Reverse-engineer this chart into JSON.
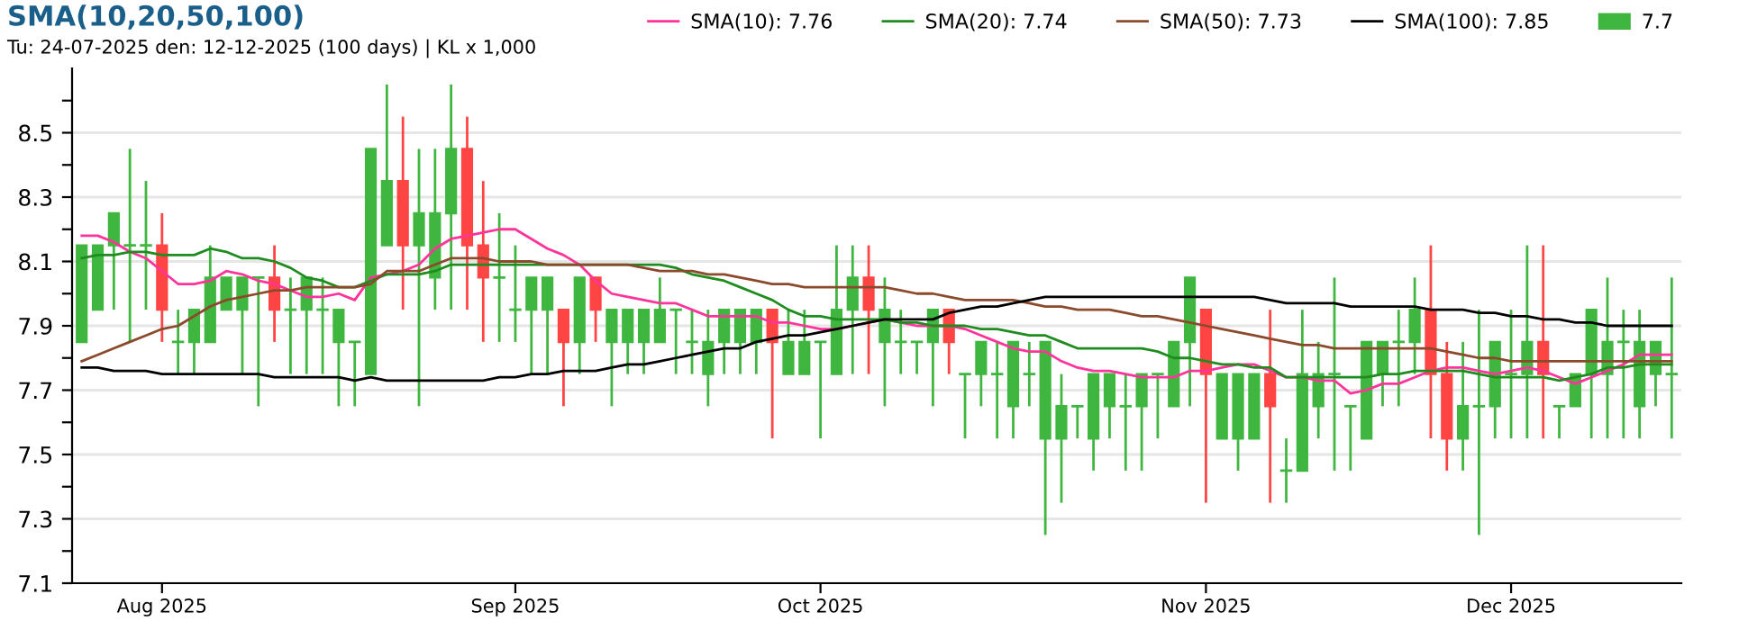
{
  "chart_data": {
    "type": "candlestick",
    "title": "SMA(10,20,50,100)",
    "annotations": [
      "Tu: 24-07-2025 den: 12-12-2025 (100 days) | KL x 1,000"
    ],
    "categories": [
      null,
      null,
      null,
      null,
      null,
      "Aug 2025",
      null,
      null,
      null,
      null,
      null,
      null,
      null,
      null,
      null,
      null,
      null,
      null,
      null,
      null,
      null,
      null,
      null,
      null,
      null,
      null,
      null,
      "Sep 2025",
      null,
      null,
      null,
      null,
      null,
      null,
      null,
      null,
      null,
      null,
      null,
      null,
      null,
      null,
      null,
      null,
      null,
      null,
      "Oct 2025",
      null,
      null,
      null,
      null,
      null,
      null,
      null,
      null,
      null,
      null,
      null,
      null,
      null,
      null,
      null,
      null,
      null,
      null,
      null,
      null,
      null,
      null,
      null,
      "Nov 2025",
      null,
      null,
      null,
      null,
      null,
      null,
      null,
      null,
      null,
      null,
      null,
      null,
      null,
      null,
      null,
      null,
      null,
      null,
      "Dec 2025",
      null,
      null,
      null,
      null,
      null,
      null,
      null,
      null,
      null,
      null
    ],
    "ylim": [
      7.1,
      8.7
    ],
    "yticks": [
      7.1,
      {
        "value": 7.2,
        "label": null
      },
      7.3,
      {
        "value": 7.4,
        "label": null
      },
      7.5,
      {
        "value": 7.6,
        "label": null
      },
      7.7,
      {
        "value": 7.8,
        "label": null
      },
      7.9,
      {
        "value": 8.0,
        "label": null
      },
      8.1,
      {
        "value": 8.2,
        "label": null
      },
      8.3,
      {
        "value": 8.4,
        "label": null
      },
      8.5,
      {
        "value": 8.6,
        "label": null
      }
    ],
    "grid": "y",
    "legend": "top right",
    "series": [
      {
        "type": "line",
        "name": "SMA(10): 7.76",
        "color": "#ff3399",
        "values": [
          8.18,
          8.18,
          8.16,
          8.13,
          8.11,
          8.07,
          8.03,
          8.03,
          8.04,
          8.07,
          8.06,
          8.04,
          8.03,
          8.01,
          7.99,
          7.99,
          8.0,
          7.98,
          8.05,
          8.06,
          8.07,
          8.09,
          8.14,
          8.17,
          8.18,
          8.19,
          8.2,
          8.2,
          8.17,
          8.14,
          8.12,
          8.09,
          8.04,
          8.0,
          7.99,
          7.98,
          7.97,
          7.97,
          7.95,
          7.93,
          7.93,
          7.93,
          7.93,
          7.91,
          7.91,
          7.9,
          7.89,
          7.89,
          7.9,
          7.91,
          7.92,
          7.91,
          7.9,
          7.9,
          7.9,
          7.89,
          7.87,
          7.85,
          7.83,
          7.82,
          7.82,
          7.79,
          7.77,
          7.76,
          7.76,
          7.75,
          7.74,
          7.74,
          7.74,
          7.76,
          7.76,
          7.77,
          7.78,
          7.78,
          7.76,
          7.74,
          7.74,
          7.73,
          7.73,
          7.69,
          7.7,
          7.72,
          7.72,
          7.74,
          7.76,
          7.77,
          7.77,
          7.76,
          7.75,
          7.76,
          7.77,
          7.76,
          7.74,
          7.72,
          7.74,
          7.76,
          7.78,
          7.81,
          7.81,
          7.81
        ]
      },
      {
        "type": "line",
        "name": "SMA(20): 7.74",
        "color": "#1e8c1e",
        "values": [
          8.11,
          8.12,
          8.12,
          8.13,
          8.13,
          8.12,
          8.12,
          8.12,
          8.14,
          8.13,
          8.11,
          8.11,
          8.1,
          8.08,
          8.05,
          8.04,
          8.02,
          8.02,
          8.04,
          8.06,
          8.06,
          8.06,
          8.07,
          8.09,
          8.09,
          8.09,
          8.09,
          8.09,
          8.09,
          8.09,
          8.09,
          8.09,
          8.09,
          8.09,
          8.09,
          8.09,
          8.09,
          8.08,
          8.06,
          8.05,
          8.04,
          8.02,
          8.0,
          7.98,
          7.95,
          7.93,
          7.93,
          7.92,
          7.92,
          7.92,
          7.92,
          7.91,
          7.91,
          7.9,
          7.9,
          7.9,
          7.89,
          7.89,
          7.88,
          7.87,
          7.87,
          7.85,
          7.83,
          7.83,
          7.83,
          7.83,
          7.83,
          7.82,
          7.8,
          7.8,
          7.79,
          7.78,
          7.78,
          7.77,
          7.77,
          7.74,
          7.74,
          7.74,
          7.74,
          7.74,
          7.74,
          7.75,
          7.75,
          7.76,
          7.76,
          7.76,
          7.76,
          7.75,
          7.74,
          7.74,
          7.74,
          7.74,
          7.73,
          7.74,
          7.75,
          7.77,
          7.77,
          7.78,
          7.78,
          7.78
        ]
      },
      {
        "type": "line",
        "name": "SMA(50): 7.73",
        "color": "#8b4a2b",
        "values": [
          7.79,
          7.81,
          7.83,
          7.85,
          7.87,
          7.89,
          7.9,
          7.93,
          7.96,
          7.98,
          7.99,
          8.0,
          8.01,
          8.01,
          8.02,
          8.02,
          8.02,
          8.02,
          8.03,
          8.07,
          8.07,
          8.07,
          8.09,
          8.11,
          8.11,
          8.11,
          8.1,
          8.1,
          8.1,
          8.09,
          8.09,
          8.09,
          8.09,
          8.09,
          8.09,
          8.08,
          8.07,
          8.07,
          8.07,
          8.06,
          8.06,
          8.05,
          8.04,
          8.03,
          8.03,
          8.02,
          8.02,
          8.02,
          8.02,
          8.02,
          8.02,
          8.01,
          8.0,
          8.0,
          7.99,
          7.98,
          7.98,
          7.98,
          7.98,
          7.97,
          7.96,
          7.96,
          7.95,
          7.95,
          7.95,
          7.94,
          7.93,
          7.93,
          7.92,
          7.91,
          7.9,
          7.89,
          7.88,
          7.87,
          7.86,
          7.85,
          7.84,
          7.84,
          7.83,
          7.83,
          7.83,
          7.83,
          7.83,
          7.83,
          7.83,
          7.82,
          7.81,
          7.8,
          7.8,
          7.79,
          7.79,
          7.79,
          7.79,
          7.79,
          7.79,
          7.79,
          7.79,
          7.79,
          7.79,
          7.79
        ]
      },
      {
        "type": "line",
        "name": "SMA(100): 7.85",
        "color": "#000000",
        "values": [
          7.77,
          7.77,
          7.76,
          7.76,
          7.76,
          7.75,
          7.75,
          7.75,
          7.75,
          7.75,
          7.75,
          7.75,
          7.74,
          7.74,
          7.74,
          7.74,
          7.74,
          7.73,
          7.74,
          7.73,
          7.73,
          7.73,
          7.73,
          7.73,
          7.73,
          7.73,
          7.74,
          7.74,
          7.75,
          7.75,
          7.76,
          7.76,
          7.76,
          7.77,
          7.78,
          7.78,
          7.79,
          7.8,
          7.81,
          7.82,
          7.83,
          7.83,
          7.85,
          7.86,
          7.87,
          7.87,
          7.88,
          7.89,
          7.9,
          7.91,
          7.92,
          7.92,
          7.92,
          7.92,
          7.94,
          7.95,
          7.96,
          7.96,
          7.97,
          7.98,
          7.99,
          7.99,
          7.99,
          7.99,
          7.99,
          7.99,
          7.99,
          7.99,
          7.99,
          7.99,
          7.99,
          7.99,
          7.99,
          7.99,
          7.98,
          7.97,
          7.97,
          7.97,
          7.97,
          7.96,
          7.96,
          7.96,
          7.96,
          7.96,
          7.95,
          7.95,
          7.95,
          7.94,
          7.94,
          7.93,
          7.93,
          7.92,
          7.92,
          7.91,
          7.91,
          7.9,
          7.9,
          7.9,
          7.9,
          7.9
        ]
      },
      {
        "name": "7.7",
        "color": "#3fb63f",
        "colors": [
          "#3fb63f",
          "#3fb63f",
          "#3fb63f",
          "#3fb63f",
          "#3fb63f",
          "#ff4444",
          "#3fb63f",
          "#3fb63f",
          "#3fb63f",
          "#3fb63f",
          "#3fb63f",
          "#3fb63f",
          "#ff4444",
          "#3fb63f",
          "#3fb63f",
          "#3fb63f",
          "#3fb63f",
          "#3fb63f",
          "#3fb63f",
          "#3fb63f",
          "#ff4444",
          "#3fb63f",
          "#3fb63f",
          "#3fb63f",
          "#ff4444",
          "#ff4444",
          "#3fb63f",
          "#3fb63f",
          "#3fb63f",
          "#3fb63f",
          "#ff4444",
          "#3fb63f",
          "#ff4444",
          "#3fb63f",
          "#3fb63f",
          "#3fb63f",
          "#3fb63f",
          "#3fb63f",
          "#3fb63f",
          "#3fb63f",
          "#3fb63f",
          "#3fb63f",
          "#3fb63f",
          "#ff4444",
          "#3fb63f",
          "#3fb63f",
          "#3fb63f",
          "#3fb63f",
          "#3fb63f",
          "#ff4444",
          "#3fb63f",
          "#3fb63f",
          "#3fb63f",
          "#3fb63f",
          "#ff4444",
          "#3fb63f",
          "#3fb63f",
          "#3fb63f",
          "#3fb63f",
          "#3fb63f",
          "#3fb63f",
          "#3fb63f",
          "#3fb63f",
          "#3fb63f",
          "#3fb63f",
          "#3fb63f",
          "#3fb63f",
          "#3fb63f",
          "#3fb63f",
          "#3fb63f",
          "#ff4444",
          "#3fb63f",
          "#3fb63f",
          "#3fb63f",
          "#ff4444",
          "#3fb63f",
          "#3fb63f",
          "#3fb63f",
          "#3fb63f",
          "#3fb63f",
          "#3fb63f",
          "#3fb63f",
          "#3fb63f",
          "#3fb63f",
          "#ff4444",
          "#ff4444",
          "#3fb63f",
          "#3fb63f",
          "#3fb63f",
          "#3fb63f",
          "#3fb63f",
          "#ff4444",
          "#3fb63f",
          "#3fb63f",
          "#3fb63f",
          "#3fb63f",
          "#3fb63f",
          "#3fb63f",
          "#3fb63f",
          "#3fb63f"
        ],
        "ohlc": [
          [
            7.85,
            8.15,
            7.85,
            8.15
          ],
          [
            7.95,
            8.15,
            7.95,
            8.15
          ],
          [
            8.15,
            8.25,
            7.95,
            8.25
          ],
          [
            8.15,
            8.45,
            7.85,
            8.15
          ],
          [
            8.15,
            8.35,
            7.95,
            8.15
          ],
          [
            8.15,
            8.25,
            7.85,
            7.95
          ],
          [
            7.85,
            7.95,
            7.75,
            7.85
          ],
          [
            7.85,
            7.95,
            7.75,
            7.95
          ],
          [
            7.85,
            8.15,
            7.85,
            8.05
          ],
          [
            7.95,
            8.05,
            7.95,
            8.05
          ],
          [
            7.95,
            8.05,
            7.75,
            8.05
          ],
          [
            8.05,
            8.05,
            7.65,
            8.05
          ],
          [
            8.05,
            8.15,
            7.85,
            7.95
          ],
          [
            7.95,
            8.05,
            7.75,
            7.95
          ],
          [
            7.95,
            8.05,
            7.75,
            8.05
          ],
          [
            7.95,
            8.05,
            7.75,
            7.95
          ],
          [
            7.85,
            7.95,
            7.65,
            7.95
          ],
          [
            7.85,
            7.85,
            7.65,
            7.85
          ],
          [
            7.75,
            8.45,
            7.75,
            8.45
          ],
          [
            8.15,
            8.65,
            8.15,
            8.35
          ],
          [
            8.35,
            8.55,
            7.95,
            8.15
          ],
          [
            8.15,
            8.45,
            7.65,
            8.25
          ],
          [
            8.05,
            8.45,
            7.95,
            8.25
          ],
          [
            8.25,
            8.65,
            7.95,
            8.45
          ],
          [
            8.45,
            8.55,
            7.95,
            8.15
          ],
          [
            8.15,
            8.35,
            7.85,
            8.05
          ],
          [
            8.05,
            8.25,
            7.85,
            8.05
          ],
          [
            7.95,
            8.15,
            7.85,
            7.95
          ],
          [
            7.95,
            8.05,
            7.75,
            8.05
          ],
          [
            7.95,
            8.05,
            7.75,
            8.05
          ],
          [
            7.95,
            7.95,
            7.65,
            7.85
          ],
          [
            7.85,
            8.05,
            7.75,
            8.05
          ],
          [
            8.05,
            8.05,
            7.85,
            7.95
          ],
          [
            7.85,
            7.95,
            7.65,
            7.95
          ],
          [
            7.85,
            7.95,
            7.75,
            7.95
          ],
          [
            7.85,
            7.95,
            7.75,
            7.95
          ],
          [
            7.85,
            8.05,
            7.85,
            7.95
          ],
          [
            7.95,
            7.95,
            7.75,
            7.95
          ],
          [
            7.85,
            7.95,
            7.75,
            7.85
          ],
          [
            7.75,
            7.95,
            7.65,
            7.85
          ],
          [
            7.85,
            7.95,
            7.75,
            7.95
          ],
          [
            7.85,
            7.95,
            7.75,
            7.95
          ],
          [
            7.85,
            7.95,
            7.75,
            7.95
          ],
          [
            7.95,
            7.95,
            7.55,
            7.85
          ],
          [
            7.75,
            7.95,
            7.75,
            7.85
          ],
          [
            7.75,
            7.95,
            7.75,
            7.85
          ],
          [
            7.85,
            7.85,
            7.55,
            7.85
          ],
          [
            7.75,
            8.15,
            7.75,
            7.95
          ],
          [
            7.95,
            8.15,
            7.75,
            8.05
          ],
          [
            8.05,
            8.15,
            7.75,
            7.95
          ],
          [
            7.85,
            8.05,
            7.65,
            7.95
          ],
          [
            7.85,
            7.95,
            7.75,
            7.85
          ],
          [
            7.85,
            7.85,
            7.75,
            7.85
          ],
          [
            7.85,
            7.95,
            7.65,
            7.95
          ],
          [
            7.95,
            7.95,
            7.75,
            7.85
          ],
          [
            7.75,
            7.75,
            7.55,
            7.75
          ],
          [
            7.75,
            7.85,
            7.65,
            7.85
          ],
          [
            7.75,
            7.85,
            7.55,
            7.75
          ],
          [
            7.65,
            7.85,
            7.55,
            7.85
          ],
          [
            7.75,
            7.85,
            7.65,
            7.75
          ],
          [
            7.55,
            7.85,
            7.25,
            7.85
          ],
          [
            7.55,
            7.75,
            7.35,
            7.65
          ],
          [
            7.65,
            7.65,
            7.55,
            7.65
          ],
          [
            7.55,
            7.75,
            7.45,
            7.75
          ],
          [
            7.65,
            7.75,
            7.55,
            7.75
          ],
          [
            7.65,
            7.75,
            7.45,
            7.65
          ],
          [
            7.65,
            7.75,
            7.45,
            7.75
          ],
          [
            7.75,
            7.75,
            7.55,
            7.75
          ],
          [
            7.65,
            7.85,
            7.65,
            7.85
          ],
          [
            7.85,
            8.05,
            7.65,
            8.05
          ],
          [
            7.95,
            7.95,
            7.35,
            7.75
          ],
          [
            7.55,
            7.75,
            7.55,
            7.75
          ],
          [
            7.55,
            7.75,
            7.45,
            7.75
          ],
          [
            7.55,
            7.75,
            7.55,
            7.75
          ],
          [
            7.75,
            7.95,
            7.35,
            7.65
          ],
          [
            7.45,
            7.55,
            7.35,
            7.45
          ],
          [
            7.45,
            7.95,
            7.45,
            7.75
          ],
          [
            7.65,
            7.85,
            7.55,
            7.75
          ],
          [
            7.75,
            8.05,
            7.45,
            7.75
          ],
          [
            7.65,
            7.65,
            7.45,
            7.65
          ],
          [
            7.55,
            7.85,
            7.55,
            7.85
          ],
          [
            7.75,
            7.85,
            7.65,
            7.85
          ],
          [
            7.85,
            7.95,
            7.65,
            7.85
          ],
          [
            7.85,
            8.05,
            7.75,
            7.95
          ],
          [
            7.95,
            8.15,
            7.55,
            7.75
          ],
          [
            7.75,
            7.85,
            7.45,
            7.55
          ],
          [
            7.55,
            7.85,
            7.45,
            7.65
          ],
          [
            7.65,
            7.95,
            7.25,
            7.65
          ],
          [
            7.65,
            7.85,
            7.55,
            7.85
          ],
          [
            7.75,
            7.95,
            7.55,
            7.75
          ],
          [
            7.75,
            8.15,
            7.55,
            7.85
          ],
          [
            7.85,
            8.15,
            7.55,
            7.75
          ],
          [
            7.65,
            7.65,
            7.55,
            7.65
          ],
          [
            7.65,
            7.75,
            7.65,
            7.75
          ],
          [
            7.75,
            7.95,
            7.55,
            7.95
          ],
          [
            7.75,
            8.05,
            7.55,
            7.85
          ],
          [
            7.85,
            7.95,
            7.55,
            7.85
          ],
          [
            7.65,
            7.95,
            7.55,
            7.85
          ],
          [
            7.75,
            7.85,
            7.65,
            7.85
          ],
          [
            7.75,
            8.05,
            7.55,
            7.75
          ]
        ]
      }
    ]
  }
}
